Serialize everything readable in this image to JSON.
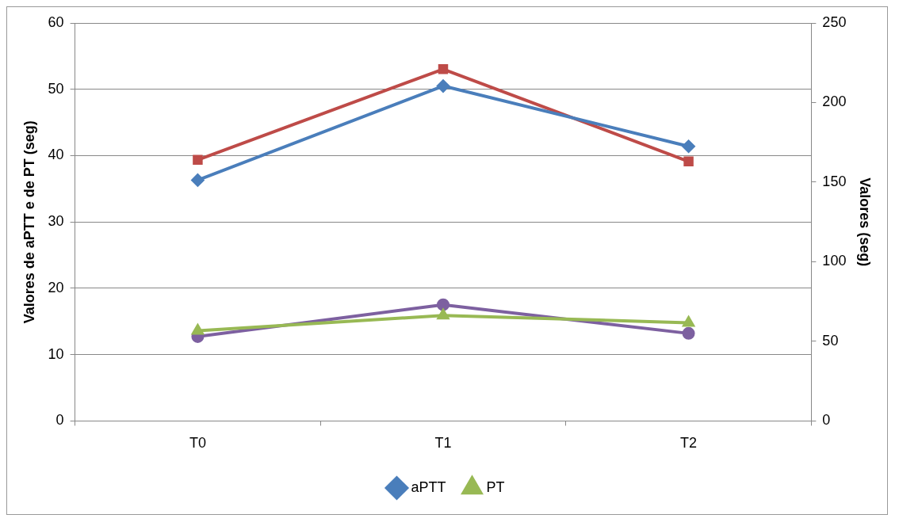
{
  "chart_data": {
    "type": "line",
    "categories": [
      "T0",
      "T1",
      "T2"
    ],
    "ylabel": "Valores de aPTT e de PT (seg)",
    "y2label": "Valores (seg)",
    "ylim": [
      0,
      60
    ],
    "yticks": [
      0,
      10,
      20,
      30,
      40,
      50,
      60
    ],
    "y2lim": [
      0,
      250
    ],
    "y2ticks": [
      0,
      50,
      100,
      150,
      200,
      250
    ],
    "grid": "y",
    "legend": "bottom",
    "series": [
      {
        "name": "aPTT",
        "color": "#4a7ebb",
        "marker": "diamond",
        "values": [
          36.3,
          50.5,
          41.4
        ]
      },
      {
        "name": "PT",
        "color": "#98b954",
        "marker": "triangle",
        "values": [
          13.6,
          15.9,
          14.8
        ]
      },
      {
        "color": "#be4b48",
        "marker": "square",
        "axis": "y2",
        "values": [
          164,
          221,
          163
        ]
      },
      {
        "color": "#7d60a0",
        "marker": "circle",
        "axis": "y2",
        "values": [
          53,
          73,
          55
        ]
      }
    ]
  }
}
